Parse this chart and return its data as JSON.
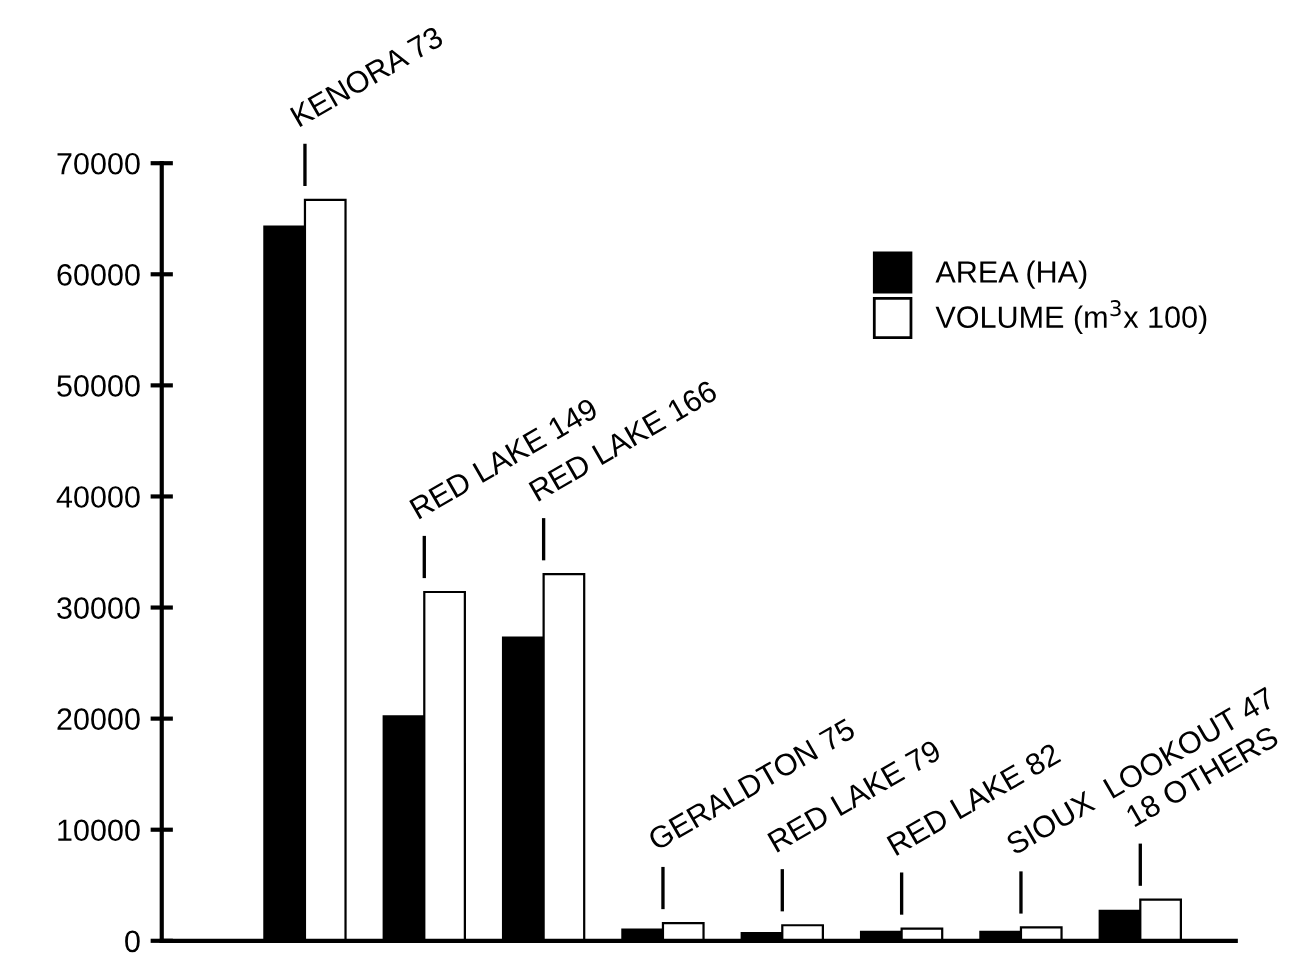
{
  "chart_data": {
    "type": "bar",
    "categories": [
      null,
      null,
      null,
      null,
      null,
      null,
      null,
      null
    ],
    "annotations": [
      "KENORA 73",
      "RED LAKE 149",
      "RED LAKE 166",
      "GERALDTON 75",
      "RED LAKE 79",
      "RED LAKE 82",
      "SIOUX  LOOKOUT 47",
      "18 OTHERS"
    ],
    "series": [
      {
        "name": "AREA (HA)",
        "color": "#000000",
        "values": [
          64300,
          20200,
          27300,
          1000,
          700,
          800,
          800,
          2700
        ]
      },
      {
        "name": "VOLUME (m$^{3}$x 100)",
        "color": "#ffffff",
        "values": [
          66700,
          31400,
          33000,
          1600,
          1400,
          1100,
          1200,
          3700
        ]
      }
    ],
    "ylim": [
      0,
      70000
    ],
    "yticks": [
      0,
      10000,
      20000,
      30000,
      40000,
      50000,
      60000,
      70000
    ],
    "grid": false,
    "legend": "top right"
  }
}
